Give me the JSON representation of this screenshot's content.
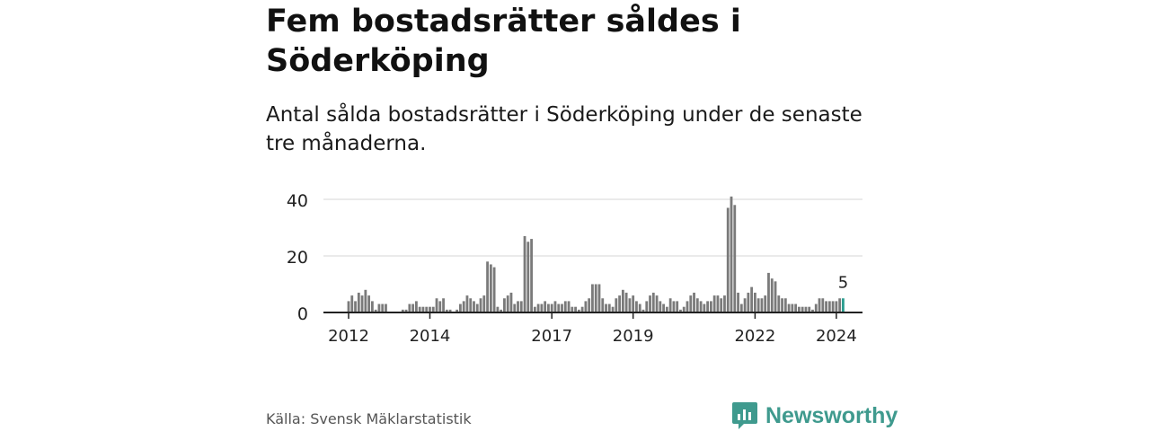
{
  "title": "Fem bostadsrätter såldes i Söderköping",
  "subtitle": "Antal sålda bostadsrätter i Söderköping under de senaste tre månaderna.",
  "source": "Källa: Svensk Mäklarstatistik",
  "brand": "Newsworthy",
  "colors": {
    "bar": "#7a7a7a",
    "highlight": "#2a9d8f",
    "brand": "#3f9a8e",
    "grid": "#dddddd"
  },
  "chart_data": {
    "type": "bar",
    "title": "Fem bostadsrätter såldes i Söderköping",
    "xlabel": "",
    "ylabel": "",
    "ylim": [
      0,
      44
    ],
    "yticks": [
      0,
      20,
      40
    ],
    "xticks": [
      "2012",
      "2014",
      "2017",
      "2019",
      "2022",
      "2024"
    ],
    "start": "2012-01",
    "highlight_label": "5",
    "values": [
      4,
      6,
      4,
      7,
      6,
      8,
      6,
      4,
      1,
      3,
      3,
      3,
      null,
      null,
      null,
      null,
      1,
      1,
      3,
      3,
      4,
      2,
      2,
      2,
      2,
      2,
      5,
      4,
      5,
      1,
      1,
      null,
      1,
      3,
      4,
      6,
      5,
      4,
      3,
      5,
      6,
      18,
      17,
      16,
      2,
      1,
      5,
      6,
      7,
      3,
      4,
      4,
      27,
      25,
      26,
      2,
      3,
      3,
      4,
      3,
      3,
      4,
      3,
      3,
      4,
      4,
      2,
      2,
      1,
      2,
      4,
      5,
      10,
      10,
      10,
      5,
      3,
      3,
      2,
      5,
      6,
      8,
      7,
      5,
      6,
      4,
      3,
      1,
      4,
      6,
      7,
      6,
      4,
      3,
      2,
      5,
      4,
      4,
      1,
      2,
      4,
      6,
      7,
      5,
      4,
      3,
      4,
      4,
      6,
      6,
      5,
      6,
      37,
      41,
      38,
      7,
      3,
      5,
      7,
      9,
      7,
      5,
      5,
      6,
      14,
      12,
      11,
      6,
      5,
      5,
      3,
      3,
      3,
      2,
      2,
      2,
      2,
      1,
      3,
      5,
      5,
      4,
      4,
      4,
      4,
      5,
      5
    ]
  }
}
